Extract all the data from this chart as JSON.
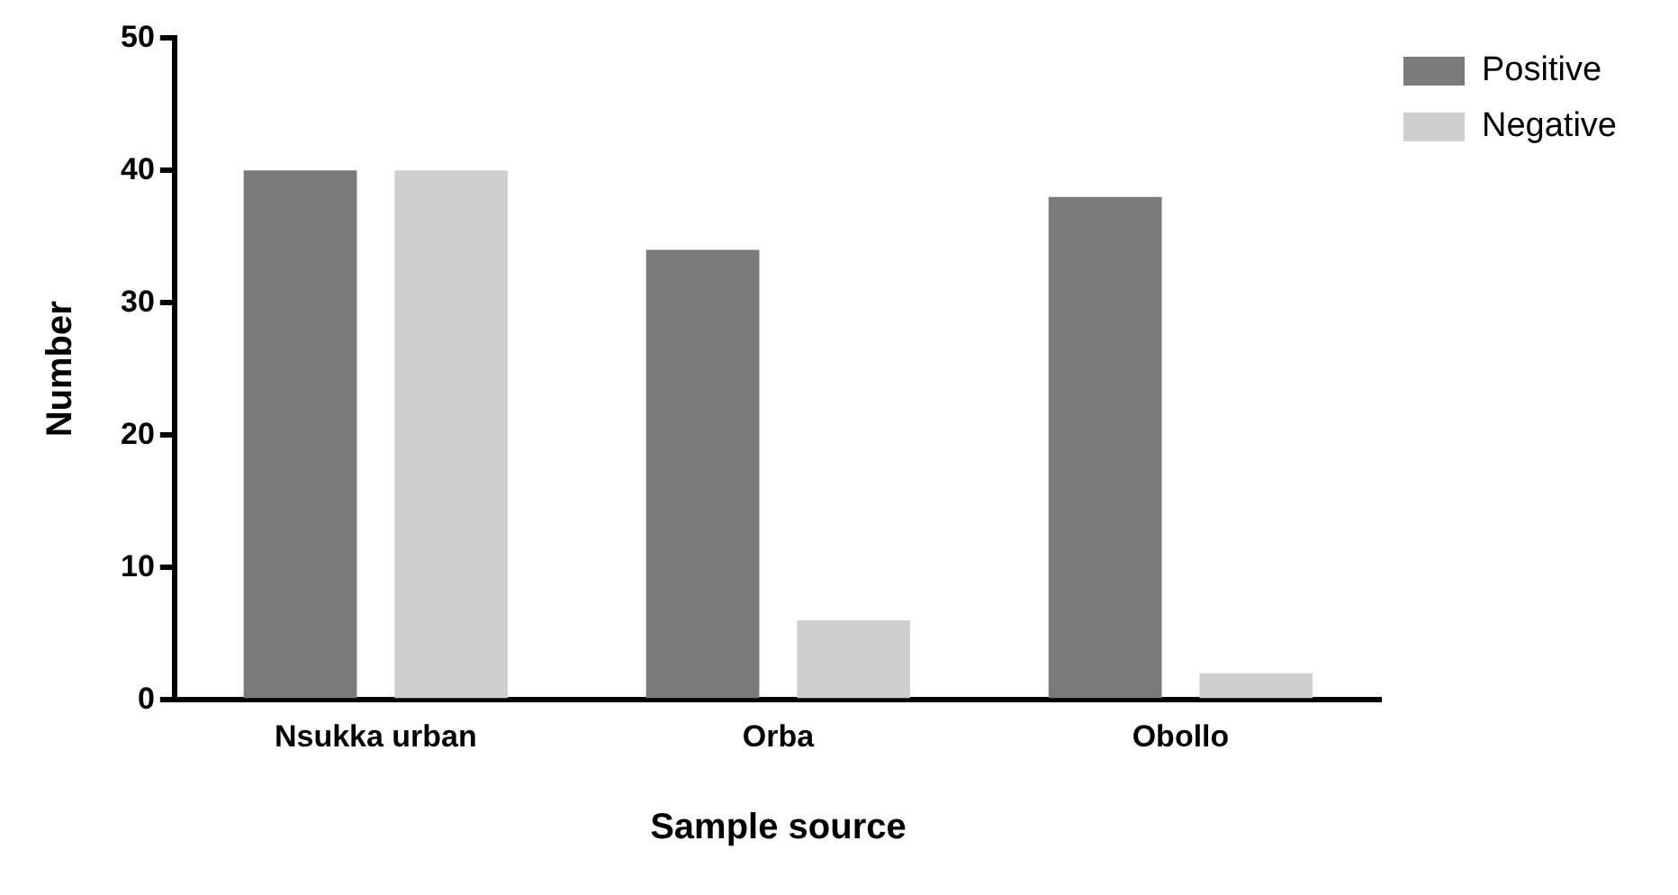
{
  "chart_data": {
    "type": "bar",
    "xlabel": "Sample source",
    "ylabel": "Number",
    "categories": [
      "Nsukka urban",
      "Orba",
      "Obollo"
    ],
    "series": [
      {
        "name": "Positive",
        "color": "#7a7a7a",
        "values": [
          40,
          34,
          38
        ]
      },
      {
        "name": "Negative",
        "color": "#cfcfcf",
        "values": [
          40,
          6,
          2
        ]
      }
    ],
    "ylim": [
      0,
      50
    ],
    "yticks": [
      0,
      10,
      20,
      30,
      40,
      50
    ],
    "grid": false,
    "legend": "top right"
  }
}
